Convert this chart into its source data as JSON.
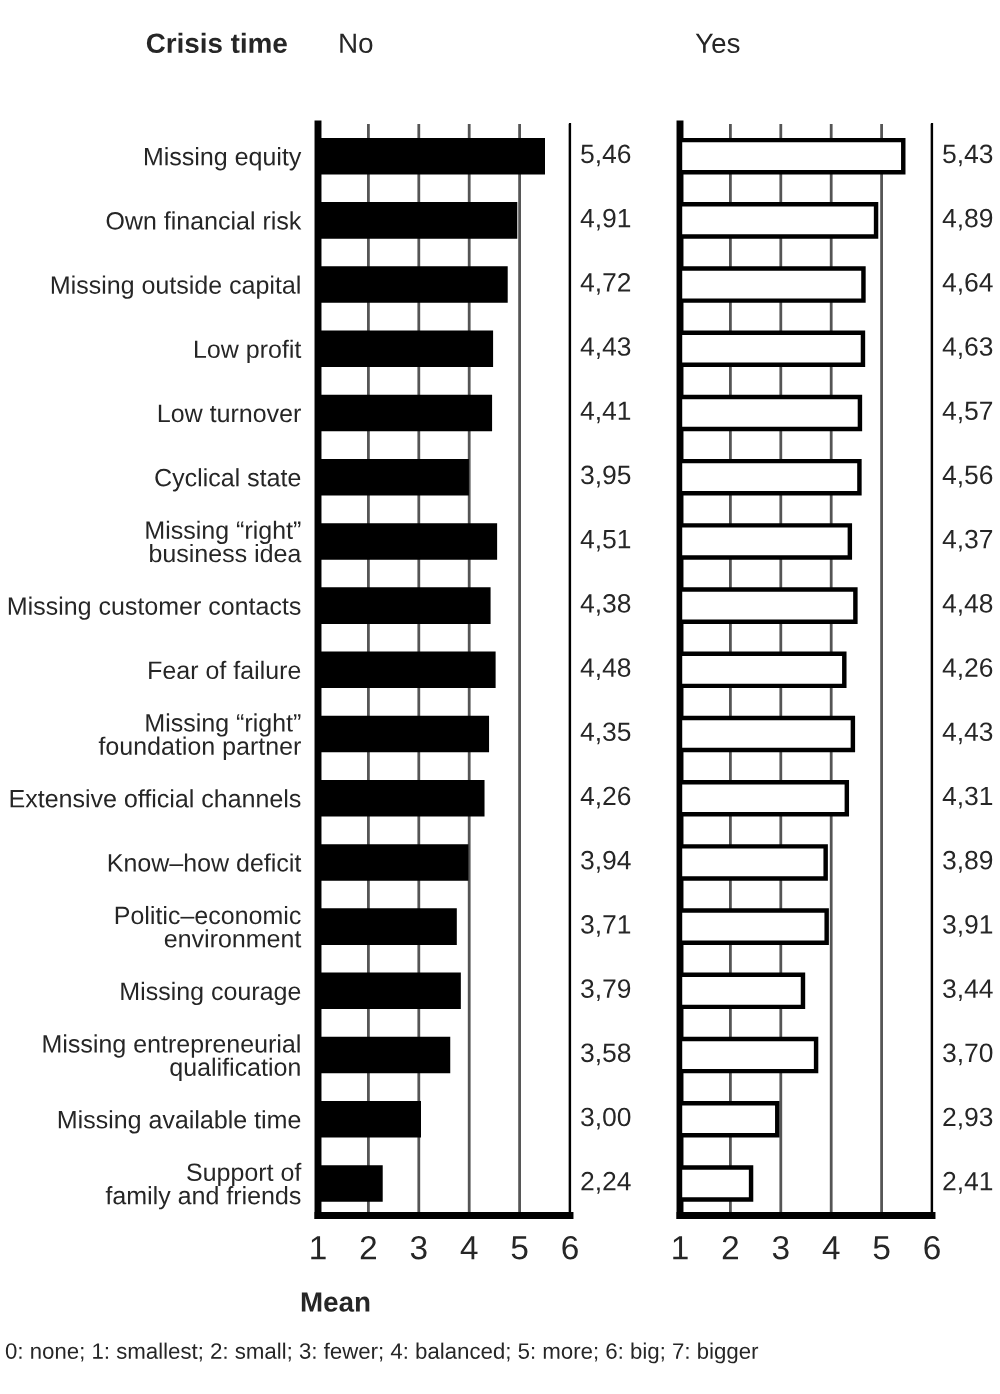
{
  "chart_data": [
    {
      "type": "bar",
      "orientation": "horizontal",
      "title": "No",
      "annotations": [
        "Crisis time"
      ],
      "xlabel": "Mean",
      "categories": [
        "Missing equity",
        "Own financial risk",
        "Missing outside capital",
        "Low profit",
        "Low turnover",
        "Cyclical state",
        "Missing “right”\nbusiness idea",
        "Missing customer contacts",
        "Fear of failure",
        "Missing “right”\nfoundation partner",
        "Extensive official channels",
        "Know–how deficit",
        "Politic–economic\nenvironment",
        "Missing courage",
        "Missing entrepreneurial\nqualification",
        "Missing available time",
        "Support of\nfamily and friends"
      ],
      "series": [
        {
          "color": "#000000",
          "values": [
            5.46,
            4.91,
            4.72,
            4.43,
            4.41,
            3.95,
            4.51,
            4.38,
            4.48,
            4.35,
            4.26,
            3.94,
            3.71,
            3.79,
            3.58,
            3.0,
            2.24
          ],
          "value_labels": [
            "5,46",
            "4,91",
            "4,72",
            "4,43",
            "4,41",
            "3,95",
            "4,51",
            "4,38",
            "4,48",
            "4,35",
            "4,26",
            "3,94",
            "3,71",
            "3,79",
            "3,58",
            "3,00",
            "2,24"
          ]
        }
      ],
      "xlim": [
        1,
        6
      ],
      "xticks": [
        1,
        2,
        3,
        4,
        5,
        6
      ],
      "grid": "x"
    },
    {
      "type": "bar",
      "orientation": "horizontal",
      "title": "Yes",
      "tick_labels": "x",
      "annotations": [
        "0: none; 1: smallest; 2: small; 3: fewer; 4: balanced; 5: more; 6: big; 7: bigger"
      ],
      "categories": [
        null,
        null,
        null,
        null,
        null,
        null,
        null,
        null,
        null,
        null,
        null,
        null,
        null,
        null,
        null,
        null,
        null
      ],
      "series": [
        {
          "color": "#ffffff",
          "values": [
            5.43,
            4.89,
            4.64,
            4.63,
            4.57,
            4.56,
            4.37,
            4.48,
            4.26,
            4.43,
            4.31,
            3.89,
            3.91,
            3.44,
            3.7,
            2.93,
            2.41
          ],
          "value_labels": [
            "5,43",
            "4,89",
            "4,64",
            "4,63",
            "4,57",
            "4,56",
            "4,37",
            "4,48",
            "4,26",
            "4,43",
            "4,31",
            "3,89",
            "3,91",
            "3,44",
            "3,70",
            "2,93",
            "2,41"
          ]
        }
      ],
      "xlim": [
        1,
        6
      ],
      "xticks": [
        1,
        2,
        3,
        4,
        5,
        6
      ],
      "grid": "x"
    }
  ]
}
